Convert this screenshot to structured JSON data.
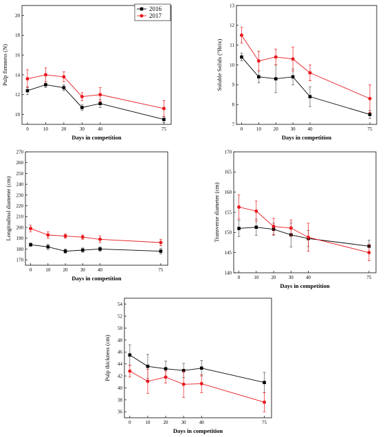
{
  "colors": {
    "s2016": "#000000",
    "s2017": "#e8191e",
    "err2016": "#555555",
    "err2017": "#e8191e"
  },
  "chart_data": [
    {
      "type": "line",
      "xlabel": "Days in competition",
      "ylabel": "Pulp firmness (N)",
      "x": [
        0,
        10,
        20,
        30,
        40,
        75
      ],
      "xticks": [
        0,
        10,
        20,
        30,
        40,
        75
      ],
      "ylim": [
        9,
        21
      ],
      "yticks": [
        10,
        12,
        14,
        16,
        18,
        20
      ],
      "legend": "top-center",
      "series": [
        {
          "name": "2016",
          "values": [
            12.4,
            13.0,
            12.7,
            10.7,
            11.1,
            9.5
          ],
          "err": [
            0.4,
            0.3,
            0.3,
            0.3,
            0.4,
            0.3
          ]
        },
        {
          "name": "2017",
          "values": [
            13.6,
            14.0,
            13.8,
            11.8,
            12.0,
            10.6
          ],
          "err": [
            0.9,
            0.7,
            0.5,
            0.4,
            0.7,
            0.8
          ]
        }
      ]
    },
    {
      "type": "line",
      "xlabel": "Days in competition",
      "ylabel": "Soluble Solids (°Brix)",
      "x": [
        0,
        10,
        20,
        30,
        40,
        75
      ],
      "xticks": [
        0,
        10,
        20,
        30,
        40,
        75
      ],
      "ylim": [
        7,
        13
      ],
      "yticks": [
        7,
        8,
        9,
        10,
        11,
        12,
        13
      ],
      "series": [
        {
          "name": "2016",
          "values": [
            10.4,
            9.4,
            9.3,
            9.4,
            8.4,
            7.5
          ],
          "err": [
            0.2,
            0.3,
            0.7,
            0.4,
            0.5,
            0.2
          ]
        },
        {
          "name": "2017",
          "values": [
            11.5,
            10.2,
            10.4,
            10.3,
            9.6,
            8.3
          ],
          "err": [
            0.4,
            0.5,
            0.4,
            0.6,
            0.4,
            0.7
          ]
        }
      ]
    },
    {
      "type": "line",
      "xlabel": "Days in competition",
      "ylabel": "Longitudinal diameter (cm)",
      "x": [
        0,
        10,
        20,
        30,
        40,
        75
      ],
      "xticks": [
        0,
        10,
        20,
        30,
        40,
        75
      ],
      "ylim": [
        165,
        270
      ],
      "yticks": [
        170,
        180,
        190,
        200,
        210,
        220,
        230,
        240,
        250,
        260,
        270
      ],
      "series": [
        {
          "name": "2016",
          "values": [
            184,
            182,
            178,
            179,
            180,
            178
          ],
          "err": [
            1.5,
            2.5,
            2,
            2,
            2,
            2.5
          ]
        },
        {
          "name": "2017",
          "values": [
            199,
            193,
            192,
            191,
            189,
            186
          ],
          "err": [
            3,
            3,
            2,
            2,
            3,
            3
          ]
        }
      ]
    },
    {
      "type": "line",
      "xlabel": "Days in competition",
      "ylabel": "Transverse diameter (cm)",
      "x": [
        0,
        10,
        20,
        30,
        40,
        75
      ],
      "xticks": [
        0,
        10,
        20,
        30,
        40,
        75
      ],
      "ylim": [
        140,
        170
      ],
      "yticks": [
        140,
        145,
        150,
        155,
        160,
        165,
        170
      ],
      "series": [
        {
          "name": "2016",
          "values": [
            151,
            151.3,
            150.8,
            149.4,
            148.5,
            146.6
          ],
          "err": [
            2,
            2,
            1.5,
            3,
            2,
            1.5
          ]
        },
        {
          "name": "2017",
          "values": [
            156.3,
            155.3,
            151.5,
            151.1,
            148.8,
            145
          ],
          "err": [
            3,
            2.5,
            2,
            2,
            3.5,
            2
          ]
        }
      ]
    },
    {
      "type": "line",
      "xlabel": "Days in competition",
      "ylabel": "Pulp thickness (cm)",
      "x": [
        0,
        10,
        20,
        30,
        40,
        75
      ],
      "xticks": [
        0,
        10,
        20,
        30,
        40,
        75
      ],
      "ylim": [
        35,
        55
      ],
      "yticks": [
        36,
        38,
        40,
        42,
        44,
        46,
        48,
        50,
        52,
        54
      ],
      "series": [
        {
          "name": "2016",
          "values": [
            45.5,
            43.6,
            43.2,
            42.9,
            43.3,
            40.9
          ],
          "err": [
            1.7,
            2.0,
            1.3,
            1.2,
            1.3,
            1.7
          ]
        },
        {
          "name": "2017",
          "values": [
            42.8,
            41.1,
            41.8,
            40.6,
            40.7,
            37.6
          ],
          "err": [
            1.0,
            2.0,
            1.0,
            2.2,
            1.5,
            1.6
          ]
        }
      ]
    }
  ]
}
